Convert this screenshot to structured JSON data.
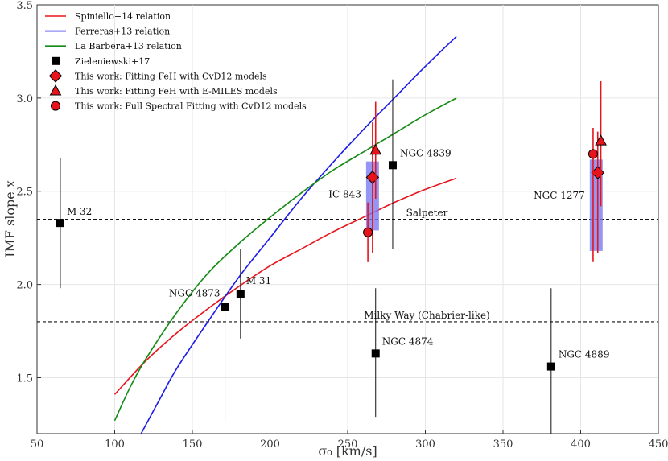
{
  "chart_data": {
    "type": "scatter",
    "xlabel": "σ₀ [km/s]",
    "ylabel": "IMF slope x",
    "xlim": [
      50,
      450
    ],
    "ylim": [
      1.2,
      3.5
    ],
    "xticks": [
      50,
      100,
      150,
      200,
      250,
      300,
      350,
      400,
      450
    ],
    "yticks": [
      1.5,
      2.0,
      2.5,
      3.0,
      3.5
    ],
    "grid": true,
    "legend_position": "top-left",
    "reference_lines": [
      {
        "name": "Salpeter",
        "y": 2.35,
        "label_x": 300
      },
      {
        "name": "Milky Way (Chabrier-like)",
        "y": 1.8,
        "label_x": 300
      }
    ],
    "relations": [
      {
        "name": "Spiniello+14 relation",
        "color": "#e8141c",
        "x": [
          100,
          120,
          140,
          160,
          180,
          200,
          220,
          240,
          260,
          280,
          300,
          320
        ],
        "y": [
          1.41,
          1.59,
          1.74,
          1.87,
          1.99,
          2.1,
          2.19,
          2.28,
          2.36,
          2.44,
          2.51,
          2.57
        ]
      },
      {
        "name": "Ferreras+13 relation",
        "color": "#1a1aeb",
        "x": [
          117,
          130,
          140,
          160,
          180,
          200,
          220,
          240,
          260,
          280,
          300,
          320
        ],
        "y": [
          1.2,
          1.4,
          1.55,
          1.8,
          2.04,
          2.25,
          2.46,
          2.65,
          2.83,
          3.0,
          3.17,
          3.33
        ]
      },
      {
        "name": "La Barbera+13 relation",
        "color": "#138a13",
        "x": [
          100,
          110,
          120,
          140,
          160,
          180,
          200,
          220,
          240,
          260,
          280,
          300,
          320
        ],
        "y": [
          1.27,
          1.45,
          1.6,
          1.85,
          2.06,
          2.22,
          2.36,
          2.49,
          2.61,
          2.71,
          2.81,
          2.91,
          3.0
        ]
      }
    ],
    "zieleniewski": {
      "name": "Zieleniewski+17",
      "points": [
        {
          "label": "M 32",
          "x": 65,
          "y": 2.33,
          "ylo": 1.98,
          "yhi": 2.68
        },
        {
          "label": "NGC 4873",
          "x": 171,
          "y": 1.88,
          "ylo": 1.26,
          "yhi": 2.52
        },
        {
          "label": "M 31",
          "x": 181,
          "y": 1.95,
          "ylo": 1.71,
          "yhi": 2.19
        },
        {
          "label": "NGC 4839",
          "x": 279,
          "y": 2.64,
          "ylo": 2.19,
          "yhi": 3.1
        },
        {
          "label": "NGC 4874",
          "x": 268,
          "y": 1.63,
          "ylo": 1.29,
          "yhi": 1.98
        },
        {
          "label": "NGC 4889",
          "x": 381,
          "y": 1.56,
          "ylo": 1.2,
          "yhi": 1.98
        }
      ]
    },
    "this_work": {
      "color": "#e8141c",
      "band_color": "#7b7bf0",
      "series": [
        {
          "name": "This work: Fitting FeH with CvD12 models",
          "marker": "diamond",
          "points": [
            {
              "x": 266,
              "y": 2.575,
              "ylo": 2.17,
              "yhi": 2.87
            },
            {
              "x": 411,
              "y": 2.6,
              "ylo": 2.17,
              "yhi": 2.82
            }
          ]
        },
        {
          "name": "This work: Fitting FeH with E-MILES models",
          "marker": "triangle",
          "points": [
            {
              "x": 268,
              "y": 2.72,
              "ylo": 2.46,
              "yhi": 2.98
            },
            {
              "x": 413,
              "y": 2.77,
              "ylo": 2.42,
              "yhi": 3.09
            }
          ]
        },
        {
          "name": "This work: Full Spectral Fitting with CvD12 models",
          "marker": "circle",
          "points": [
            {
              "x": 263,
              "y": 2.28,
              "ylo": 2.12,
              "yhi": 2.44
            },
            {
              "x": 408,
              "y": 2.7,
              "ylo": 2.12,
              "yhi": 2.84
            }
          ]
        }
      ],
      "bands": [
        {
          "label": "IC 843",
          "x": 266,
          "ylo": 2.29,
          "yhi": 2.66
        },
        {
          "label": "NGC 1277",
          "x": 410,
          "ylo": 2.18,
          "yhi": 2.67
        }
      ]
    }
  }
}
